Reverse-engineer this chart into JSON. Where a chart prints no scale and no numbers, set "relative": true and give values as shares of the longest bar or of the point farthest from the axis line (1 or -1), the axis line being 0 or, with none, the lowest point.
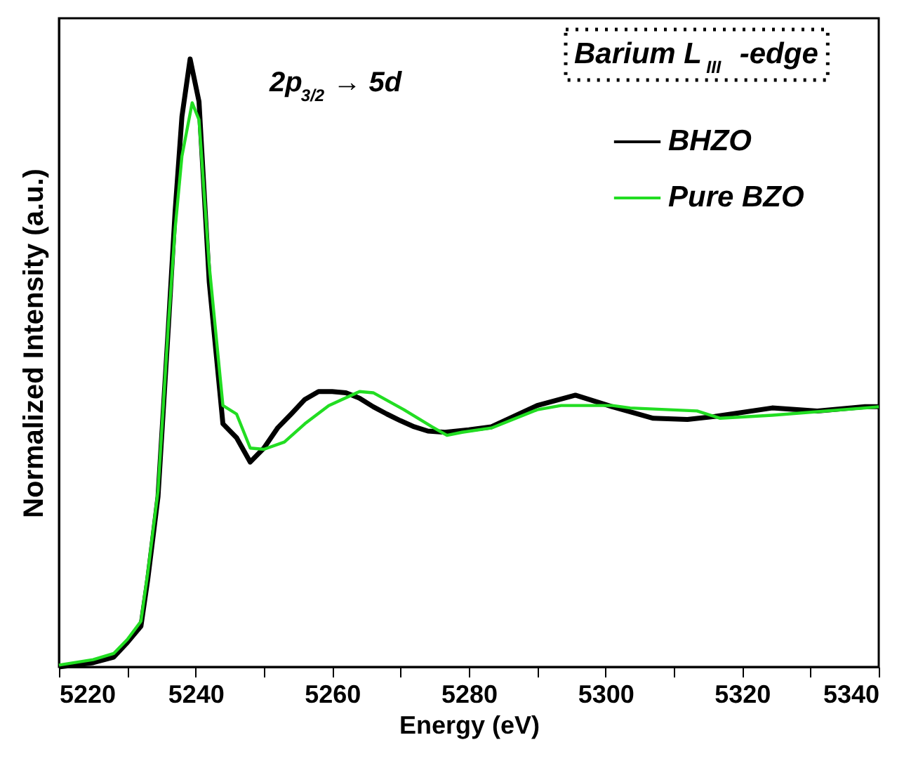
{
  "chart_data": {
    "type": "line",
    "relative": true,
    "xlabel": "Energy (eV)",
    "ylabel": "Normalized Intensity (a.u.)",
    "xlim": [
      5220,
      5340
    ],
    "xticks": [
      5220,
      {
        "value": 5230,
        "label": null
      },
      5240,
      {
        "value": 5250,
        "label": null
      },
      5260,
      {
        "value": 5270,
        "label": null
      },
      5280,
      {
        "value": 5290,
        "label": null
      },
      5300,
      {
        "value": 5310,
        "label": null
      },
      5320,
      {
        "value": 5330,
        "label": null
      },
      5340
    ],
    "legend": "top right",
    "grid": false,
    "marker": "none",
    "line_style": "solid",
    "annotations": [
      "2p$_{3/2}$ → 5d",
      "Barium L$_{III}$-edge"
    ],
    "series": [
      {
        "name": "BHZO",
        "color": "#000000",
        "x": [
          5220,
          5225,
          5228,
          5230,
          5232,
          5233,
          5234.5,
          5236,
          5237,
          5238,
          5239.2,
          5240.5,
          5242,
          5244,
          5246,
          5248,
          5250,
          5252,
          5254,
          5256,
          5258,
          5260,
          5262,
          5264,
          5266,
          5268,
          5270,
          5272,
          5274,
          5276.5,
          5280,
          5283.3,
          5290,
          5295.6,
          5301,
          5307,
          5312,
          5316,
          5324.4,
          5331,
          5338,
          5340
        ],
        "values": [
          0,
          0.007,
          0.016,
          0.04,
          0.067,
          0.144,
          0.28,
          0.556,
          0.749,
          0.905,
          1.0,
          0.93,
          0.633,
          0.4,
          0.377,
          0.337,
          0.36,
          0.393,
          0.416,
          0.44,
          0.453,
          0.453,
          0.451,
          0.442,
          0.428,
          0.416,
          0.405,
          0.395,
          0.388,
          0.386,
          0.39,
          0.395,
          0.43,
          0.447,
          0.428,
          0.409,
          0.407,
          0.412,
          0.426,
          0.421,
          0.428,
          0.428
        ]
      },
      {
        "name": "Pure BZO",
        "color": "#22dd22",
        "x": [
          5220,
          5225,
          5228,
          5230,
          5232,
          5233,
          5234.5,
          5236,
          5237,
          5238,
          5239.5,
          5240.5,
          5242,
          5244,
          5246,
          5248,
          5250,
          5253,
          5256,
          5259.5,
          5264,
          5266,
          5270.5,
          5274.6,
          5276.8,
          5279,
          5283.3,
          5290,
          5293.5,
          5301,
          5303.6,
          5313.4,
          5316.8,
          5324.4,
          5338,
          5340
        ],
        "values": [
          0.003,
          0.012,
          0.022,
          0.045,
          0.075,
          0.155,
          0.29,
          0.56,
          0.72,
          0.84,
          0.928,
          0.9,
          0.66,
          0.43,
          0.416,
          0.36,
          0.358,
          0.37,
          0.4,
          0.43,
          0.453,
          0.451,
          0.423,
          0.395,
          0.381,
          0.386,
          0.393,
          0.423,
          0.43,
          0.43,
          0.426,
          0.421,
          0.409,
          0.414,
          0.426,
          0.428
        ]
      }
    ]
  }
}
